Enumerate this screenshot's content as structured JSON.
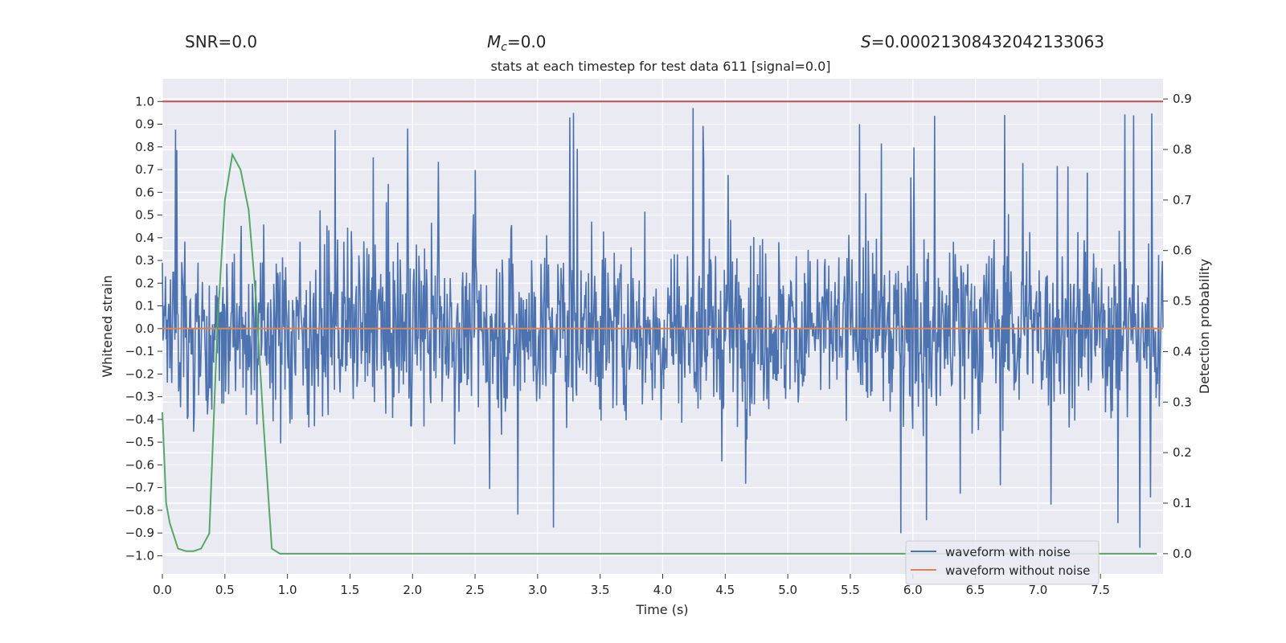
{
  "header": {
    "snr_label": "SNR=",
    "snr_value": "0.0",
    "mc_symbol": "M",
    "mc_sub": "c",
    "mc_value": "=0.0",
    "s_symbol": "S",
    "s_value": "=0.00021308432042133063"
  },
  "chart_data": {
    "type": "line",
    "title": "stats at each timestep for test data 611 [signal=0.0]",
    "xlabel": "Time (s)",
    "ylabel": "Whitened strain",
    "y2label": "Detection probability",
    "xlim": [
      0.0,
      8.0
    ],
    "ylim": [
      -1.08,
      1.1
    ],
    "y2lim": [
      -0.04,
      0.94
    ],
    "xticks": [
      0.0,
      0.5,
      1.0,
      1.5,
      2.0,
      2.5,
      3.0,
      3.5,
      4.0,
      4.5,
      5.0,
      5.5,
      6.0,
      6.5,
      7.0,
      7.5
    ],
    "xtick_labels": [
      "0.0",
      "0.5",
      "1.0",
      "1.5",
      "2.0",
      "2.5",
      "3.0",
      "3.5",
      "4.0",
      "4.5",
      "5.0",
      "5.5",
      "6.0",
      "6.5",
      "7.0",
      "7.5"
    ],
    "yticks": [
      1.0,
      0.9,
      0.8,
      0.7,
      0.6,
      0.5,
      0.4,
      0.3,
      0.2,
      0.1,
      0.0,
      -0.1,
      -0.2,
      -0.3,
      -0.4,
      -0.5,
      -0.6,
      -0.7,
      -0.8,
      -0.9,
      -1.0
    ],
    "ytick_labels": [
      "1.0",
      "0.9",
      "0.8",
      "0.7",
      "0.6",
      "0.5",
      "0.4",
      "0.3",
      "0.2",
      "0.1",
      "0.0",
      "−0.1",
      "−0.2",
      "−0.3",
      "−0.4",
      "−0.5",
      "−0.6",
      "−0.7",
      "−0.8",
      "−0.9",
      "−1.0"
    ],
    "y2ticks": [
      0.9,
      0.8,
      0.7,
      0.6,
      0.5,
      0.4,
      0.3,
      0.2,
      0.1,
      0.0
    ],
    "y2tick_labels": [
      "0.9",
      "0.8",
      "0.7",
      "0.6",
      "0.5",
      "0.4",
      "0.3",
      "0.2",
      "0.1",
      "0.0"
    ],
    "series": [
      {
        "name": "waveform with noise",
        "color": "#4c72b0",
        "axis": "left",
        "kind": "noise",
        "n_points": 1600,
        "approx_range": [
          -1.0,
          1.0
        ],
        "typical_range": [
          -0.45,
          0.45
        ]
      },
      {
        "name": "waveform without noise",
        "color": "#dd8452",
        "axis": "left",
        "x": [
          0.0,
          8.0
        ],
        "y": [
          0.0,
          0.0
        ]
      },
      {
        "name": "detection probability",
        "color": "#55a868",
        "axis": "right",
        "x": [
          0.0,
          0.03,
          0.06,
          0.125,
          0.19,
          0.25,
          0.31,
          0.375,
          0.44,
          0.5,
          0.56,
          0.625,
          0.69,
          0.75,
          0.81,
          0.875,
          0.94,
          1.0,
          2.0,
          3.0,
          4.0,
          5.0,
          6.0,
          7.0,
          7.95
        ],
        "y": [
          0.28,
          0.1,
          0.06,
          0.01,
          0.005,
          0.005,
          0.01,
          0.04,
          0.45,
          0.7,
          0.79,
          0.76,
          0.68,
          0.5,
          0.25,
          0.01,
          0.0,
          0.0,
          0.0,
          0.0,
          0.0,
          0.0,
          0.0,
          0.0,
          0.0
        ]
      }
    ],
    "hlines": [
      {
        "name": "threshold",
        "y": 1.0,
        "axis": "left",
        "color": "#c44e52"
      }
    ],
    "legend": {
      "position": "bottom-right",
      "entries": [
        "waveform with noise",
        "waveform without noise"
      ]
    },
    "background": "#eaeaf2",
    "grid": true
  }
}
